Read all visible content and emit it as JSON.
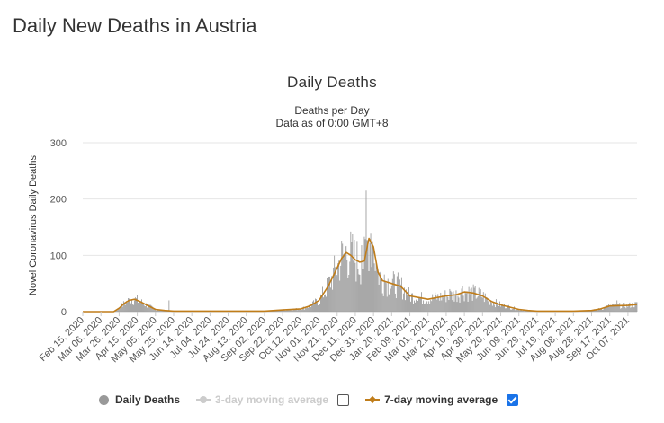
{
  "page": {
    "title": "Daily New Deaths in Austria"
  },
  "chart_data": {
    "type": "bar",
    "title": "Daily Deaths",
    "subtitle": "Deaths per Day",
    "subtitle2": "Data as of 0:00 GMT+8",
    "ylabel": "Novel Coronavirus Daily Deaths",
    "xlabel": "",
    "ylim": [
      0,
      300
    ],
    "yticks": [
      0,
      100,
      200,
      300
    ],
    "x_start": "2020-02-15",
    "x_end": "2021-10-17",
    "xtick_labels": [
      "Feb 15, 2020",
      "Mar 06, 2020",
      "Mar 26, 2020",
      "Apr 15, 2020",
      "May 05, 2020",
      "May 25, 2020",
      "Jun 14, 2020",
      "Jul 04, 2020",
      "Jul 24, 2020",
      "Aug 13, 2020",
      "Sep 02, 2020",
      "Sep 22, 2020",
      "Oct 12, 2020",
      "Nov 01, 2020",
      "Nov 21, 2020",
      "Dec 11, 2020",
      "Dec 31, 2020",
      "Jan 20, 2021",
      "Feb 09, 2021",
      "Mar 01, 2021",
      "Mar 21, 2021",
      "Apr 10, 2021",
      "Apr 30, 2021",
      "May 20, 2021",
      "Jun 09, 2021",
      "Jun 29, 2021",
      "Jul 19, 2021",
      "Aug 08, 2021",
      "Aug 28, 2021",
      "Sep 17, 2021",
      "Oct 07, 2021"
    ],
    "grid": true,
    "legend_position": "bottom",
    "series": [
      {
        "name": "Daily Deaths",
        "kind": "bar",
        "color": "#999999",
        "visible": true
      },
      {
        "name": "3-day moving average",
        "kind": "line",
        "color": "#cccccc",
        "visible": false
      },
      {
        "name": "7-day moving average",
        "kind": "line",
        "color": "#c07d1a",
        "visible": true
      }
    ],
    "seven_day_average_points": [
      [
        "2020-02-15",
        0
      ],
      [
        "2020-03-20",
        0
      ],
      [
        "2020-03-26",
        6
      ],
      [
        "2020-04-01",
        15
      ],
      [
        "2020-04-06",
        20
      ],
      [
        "2020-04-12",
        22
      ],
      [
        "2020-04-18",
        18
      ],
      [
        "2020-04-25",
        12
      ],
      [
        "2020-05-05",
        4
      ],
      [
        "2020-05-15",
        2
      ],
      [
        "2020-05-25",
        1
      ],
      [
        "2020-06-14",
        1
      ],
      [
        "2020-07-04",
        1
      ],
      [
        "2020-07-24",
        1
      ],
      [
        "2020-08-13",
        1
      ],
      [
        "2020-09-02",
        1
      ],
      [
        "2020-09-22",
        3
      ],
      [
        "2020-10-12",
        5
      ],
      [
        "2020-10-22",
        10
      ],
      [
        "2020-11-01",
        20
      ],
      [
        "2020-11-11",
        45
      ],
      [
        "2020-11-21",
        78
      ],
      [
        "2020-11-26",
        95
      ],
      [
        "2020-12-01",
        105
      ],
      [
        "2020-12-06",
        100
      ],
      [
        "2020-12-11",
        92
      ],
      [
        "2020-12-16",
        88
      ],
      [
        "2020-12-21",
        90
      ],
      [
        "2020-12-26",
        130
      ],
      [
        "2020-12-31",
        115
      ],
      [
        "2021-01-05",
        70
      ],
      [
        "2021-01-10",
        55
      ],
      [
        "2021-01-20",
        50
      ],
      [
        "2021-01-30",
        45
      ],
      [
        "2021-02-09",
        28
      ],
      [
        "2021-02-19",
        25
      ],
      [
        "2021-03-01",
        22
      ],
      [
        "2021-03-11",
        25
      ],
      [
        "2021-03-21",
        28
      ],
      [
        "2021-04-01",
        30
      ],
      [
        "2021-04-10",
        35
      ],
      [
        "2021-04-20",
        33
      ],
      [
        "2021-04-30",
        28
      ],
      [
        "2021-05-10",
        18
      ],
      [
        "2021-05-20",
        12
      ],
      [
        "2021-05-30",
        8
      ],
      [
        "2021-06-09",
        4
      ],
      [
        "2021-06-19",
        2
      ],
      [
        "2021-06-29",
        1
      ],
      [
        "2021-07-19",
        1
      ],
      [
        "2021-08-08",
        1
      ],
      [
        "2021-08-28",
        2
      ],
      [
        "2021-09-07",
        5
      ],
      [
        "2021-09-17",
        10
      ],
      [
        "2021-10-07",
        11
      ],
      [
        "2021-10-17",
        13
      ]
    ],
    "spikes": [
      [
        "2020-12-23",
        215
      ],
      [
        "2020-12-28",
        140
      ],
      [
        "2020-12-30",
        125
      ],
      [
        "2020-12-18",
        118
      ],
      [
        "2020-11-30",
        115
      ],
      [
        "2021-01-03",
        90
      ],
      [
        "2020-05-20",
        20
      ],
      [
        "2021-01-12",
        66
      ],
      [
        "2021-03-25",
        40
      ],
      [
        "2021-04-08",
        45
      ],
      [
        "2021-09-25",
        20
      ]
    ]
  },
  "legend": {
    "daily": "Daily Deaths",
    "ma3": "3-day moving average",
    "ma7": "7-day moving average",
    "ma3_checked": false,
    "ma7_checked": true
  }
}
